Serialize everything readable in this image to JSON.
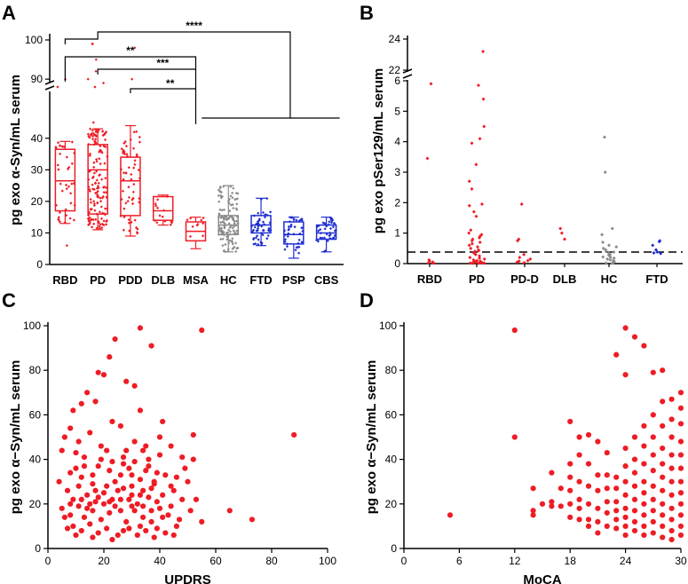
{
  "colors": {
    "red": "#ee1c25",
    "gray": "#8c8c8c",
    "blue": "#1f2fd0",
    "black": "#000000"
  },
  "chart_data": [
    {
      "panel": "A",
      "type": "box",
      "ylabel": "pg exo α-Syn/mL serum",
      "y_axis_break": [
        45,
        88
      ],
      "ylim": [
        0,
        100
      ],
      "yticks": [
        0,
        10,
        20,
        30,
        40,
        90,
        100
      ],
      "categories": [
        {
          "label": "RBD",
          "color": "red",
          "q1": 17,
          "median": 26.5,
          "q3": 36.5,
          "whisker_low": 13,
          "whisker_high": 39,
          "n": 40
        },
        {
          "label": "PD",
          "color": "red",
          "q1": 16,
          "median": 30,
          "q3": 38,
          "whisker_low": 11,
          "whisker_high": 43,
          "outliers": [
            99
          ],
          "n": 150
        },
        {
          "label": "PDD",
          "color": "red",
          "q1": 15.5,
          "median": 26.5,
          "q3": 34,
          "whisker_low": 9,
          "whisker_high": 44,
          "n": 60
        },
        {
          "label": "DLB",
          "color": "red",
          "q1": 14,
          "median": 17,
          "q3": 21.5,
          "whisker_low": 12.5,
          "whisker_high": 22,
          "n": 15
        },
        {
          "label": "MSA",
          "color": "red",
          "q1": 7.5,
          "median": 10.5,
          "q3": 13.5,
          "whisker_low": 5,
          "whisker_high": 15,
          "n": 10
        },
        {
          "label": "HC",
          "color": "gray",
          "q1": 9.5,
          "median": 12.5,
          "q3": 15.5,
          "whisker_low": 4,
          "whisker_high": 25,
          "n": 130
        },
        {
          "label": "FTD",
          "color": "blue",
          "q1": 10,
          "median": 12.5,
          "q3": 15.5,
          "whisker_low": 6,
          "whisker_high": 21,
          "n": 50
        },
        {
          "label": "PSP",
          "color": "blue",
          "q1": 6.5,
          "median": 9.5,
          "q3": 13.5,
          "whisker_low": 2,
          "whisker_high": 15,
          "n": 40
        },
        {
          "label": "CBS",
          "color": "blue",
          "q1": 8,
          "median": 10,
          "q3": 12.5,
          "whisker_low": 4,
          "whisker_high": 15,
          "n": 40
        }
      ],
      "significance": [
        {
          "label": "****",
          "from": "RBD",
          "to": "HC-FTD-PSP-CBS"
        },
        {
          "label": "**",
          "from": "RBD",
          "to": "MSA"
        },
        {
          "label": "***",
          "from": "PD",
          "to": "MSA"
        },
        {
          "label": "**",
          "from": "PDD",
          "to": "MSA"
        }
      ]
    },
    {
      "panel": "B",
      "type": "scatter",
      "ylabel": "pg exo pSer129/mL serum",
      "y_axis_break": [
        6.2,
        21.5
      ],
      "ylim": [
        0,
        24
      ],
      "yticks": [
        0,
        1,
        2,
        3,
        4,
        5,
        6,
        22,
        24
      ],
      "threshold": 0.38,
      "categories": [
        {
          "label": "RBD",
          "color": "red",
          "values": [
            5.9,
            3.45,
            0.12,
            0.08,
            0.05,
            0.03,
            0.02,
            0.02
          ]
        },
        {
          "label": "PD",
          "color": "red",
          "values": [
            23.2,
            5.85,
            5.4,
            4.5,
            4.1,
            3.95,
            3.25,
            2.7,
            2.45,
            1.95,
            1.9,
            1.7,
            1.55,
            1.1,
            1.0,
            0.95,
            0.9,
            0.85,
            0.8,
            0.75,
            0.7,
            0.65,
            0.6,
            0.55,
            0.5,
            0.45,
            0.42,
            0.4,
            0.38,
            0.35,
            0.3,
            0.25,
            0.2,
            0.18,
            0.15,
            0.12,
            0.1,
            0.08,
            0.06,
            0.05,
            0.04,
            0.03,
            0.03,
            0.02,
            0.02,
            0.02,
            0.01,
            0.01
          ]
        },
        {
          "label": "PD-D",
          "color": "red",
          "values": [
            1.95,
            0.8,
            0.75,
            0.3,
            0.2,
            0.15,
            0.1,
            0.08,
            0.05,
            0.03,
            0.02
          ]
        },
        {
          "label": "DLB",
          "color": "red",
          "values": [
            1.15,
            1.0,
            0.8
          ]
        },
        {
          "label": "HC",
          "color": "gray",
          "values": [
            4.15,
            3.0,
            1.15,
            0.95,
            0.7,
            0.6,
            0.55,
            0.5,
            0.45,
            0.4,
            0.38,
            0.35,
            0.3,
            0.28,
            0.25,
            0.22,
            0.2,
            0.18,
            0.15,
            0.12,
            0.1,
            0.08,
            0.06,
            0.05,
            0.04,
            0.03,
            0.02,
            0.01
          ]
        },
        {
          "label": "FTD",
          "color": "blue",
          "values": [
            0.75,
            0.72,
            0.6,
            0.45,
            0.38,
            0.35,
            0.33
          ]
        }
      ]
    },
    {
      "panel": "C",
      "type": "scatter",
      "xlabel": "UPDRS",
      "ylabel": "pg exo α−Syn/mL serum",
      "xlim": [
        0,
        100
      ],
      "ylim": [
        0,
        100
      ],
      "xticks": [
        0,
        20,
        40,
        60,
        80,
        100
      ],
      "yticks": [
        0,
        20,
        40,
        60,
        80,
        100
      ],
      "points": [
        [
          24,
          94
        ],
        [
          33,
          99
        ],
        [
          55,
          98
        ],
        [
          37,
          91
        ],
        [
          88,
          51
        ],
        [
          73,
          13
        ],
        [
          65,
          17
        ],
        [
          18,
          79
        ],
        [
          20,
          78
        ],
        [
          22,
          86
        ],
        [
          12,
          65
        ],
        [
          14,
          70
        ],
        [
          17,
          66
        ],
        [
          28,
          75
        ],
        [
          31,
          73
        ],
        [
          9,
          62
        ],
        [
          23,
          57
        ],
        [
          26,
          55
        ],
        [
          33,
          62
        ],
        [
          41,
          57
        ],
        [
          8,
          54
        ],
        [
          6,
          50
        ],
        [
          11,
          48
        ],
        [
          15,
          52
        ],
        [
          19,
          46
        ],
        [
          31,
          48
        ],
        [
          44,
          46
        ],
        [
          52,
          51
        ],
        [
          5,
          44
        ],
        [
          10,
          43
        ],
        [
          13,
          41
        ],
        [
          21,
          44
        ],
        [
          27,
          41
        ],
        [
          34,
          44
        ],
        [
          36,
          40
        ],
        [
          40,
          42
        ],
        [
          48,
          41
        ],
        [
          4,
          30
        ],
        [
          8,
          34
        ],
        [
          12,
          32
        ],
        [
          16,
          29
        ],
        [
          18,
          37
        ],
        [
          22,
          35
        ],
        [
          26,
          33
        ],
        [
          29,
          36
        ],
        [
          33,
          31
        ],
        [
          35,
          35
        ],
        [
          38,
          29
        ],
        [
          42,
          33
        ],
        [
          50,
          30
        ],
        [
          7,
          26
        ],
        [
          9,
          22
        ],
        [
          14,
          24
        ],
        [
          17,
          21
        ],
        [
          20,
          25
        ],
        [
          23,
          22
        ],
        [
          27,
          27
        ],
        [
          30,
          24
        ],
        [
          32,
          20
        ],
        [
          36,
          23
        ],
        [
          39,
          21
        ],
        [
          45,
          26
        ],
        [
          53,
          22
        ],
        [
          5,
          18
        ],
        [
          8,
          15
        ],
        [
          11,
          19
        ],
        [
          13,
          14
        ],
        [
          16,
          17
        ],
        [
          19,
          13
        ],
        [
          22,
          16
        ],
        [
          24,
          19
        ],
        [
          28,
          12
        ],
        [
          31,
          17
        ],
        [
          34,
          14
        ],
        [
          37,
          12
        ],
        [
          40,
          18
        ],
        [
          43,
          15
        ],
        [
          46,
          10
        ],
        [
          51,
          17
        ],
        [
          55,
          12
        ],
        [
          9,
          10
        ],
        [
          12,
          8
        ],
        [
          15,
          11
        ],
        [
          18,
          7
        ],
        [
          21,
          9
        ],
        [
          25,
          6
        ],
        [
          29,
          9
        ],
        [
          32,
          6
        ],
        [
          35,
          8
        ],
        [
          38,
          5
        ],
        [
          42,
          7
        ],
        [
          47,
          13
        ],
        [
          6,
          14
        ],
        [
          14,
          18
        ],
        [
          20,
          20
        ],
        [
          26,
          22
        ],
        [
          30,
          28
        ],
        [
          34,
          26
        ],
        [
          38,
          30
        ],
        [
          41,
          24
        ],
        [
          44,
          28
        ],
        [
          49,
          36
        ],
        [
          52,
          40
        ],
        [
          11,
          28
        ],
        [
          16,
          33
        ],
        [
          24,
          30
        ],
        [
          27,
          38
        ],
        [
          30,
          33
        ],
        [
          36,
          37
        ],
        [
          39,
          34
        ],
        [
          46,
          32
        ],
        [
          10,
          36
        ],
        [
          13,
          37
        ],
        [
          19,
          40
        ],
        [
          23,
          39
        ],
        [
          28,
          44
        ],
        [
          31,
          39
        ],
        [
          35,
          46
        ],
        [
          40,
          50
        ],
        [
          17,
          26
        ],
        [
          21,
          28
        ],
        [
          25,
          26
        ],
        [
          29,
          22
        ],
        [
          33,
          24
        ],
        [
          37,
          27
        ],
        [
          8,
          20
        ],
        [
          12,
          22
        ],
        [
          15,
          20
        ],
        [
          18,
          23
        ],
        [
          22,
          21
        ],
        [
          26,
          17
        ],
        [
          30,
          19
        ],
        [
          34,
          19
        ],
        [
          37,
          17
        ],
        [
          41,
          14
        ],
        [
          44,
          19
        ],
        [
          48,
          22
        ],
        [
          7,
          9
        ],
        [
          10,
          6
        ],
        [
          16,
          5
        ],
        [
          23,
          4
        ],
        [
          27,
          8
        ],
        [
          33,
          10
        ],
        [
          39,
          9
        ],
        [
          45,
          6
        ]
      ]
    },
    {
      "panel": "D",
      "type": "scatter",
      "xlabel": "MoCA",
      "ylabel": "pg exo α−Syn/mL serum",
      "xlim": [
        0,
        30
      ],
      "ylim": [
        0,
        100
      ],
      "xticks": [
        0,
        6,
        12,
        18,
        24,
        30
      ],
      "yticks": [
        0,
        20,
        40,
        60,
        80,
        100
      ],
      "points": [
        [
          5,
          15
        ],
        [
          12,
          98
        ],
        [
          12,
          50
        ],
        [
          14,
          17
        ],
        [
          14,
          27
        ],
        [
          14,
          15
        ],
        [
          15,
          20
        ],
        [
          16,
          34
        ],
        [
          16,
          19
        ],
        [
          16,
          21
        ],
        [
          17,
          27
        ],
        [
          17,
          19
        ],
        [
          18,
          57
        ],
        [
          18,
          38
        ],
        [
          18,
          32
        ],
        [
          18,
          26
        ],
        [
          18,
          20
        ],
        [
          18,
          14
        ],
        [
          19,
          50
        ],
        [
          19,
          42
        ],
        [
          19,
          30
        ],
        [
          19,
          22
        ],
        [
          19,
          18
        ],
        [
          19,
          13
        ],
        [
          20,
          51
        ],
        [
          20,
          38
        ],
        [
          20,
          28
        ],
        [
          20,
          20
        ],
        [
          20,
          13
        ],
        [
          20,
          10
        ],
        [
          21,
          48
        ],
        [
          21,
          33
        ],
        [
          21,
          26
        ],
        [
          21,
          18
        ],
        [
          21,
          12
        ],
        [
          21,
          7
        ],
        [
          22,
          43
        ],
        [
          22,
          33
        ],
        [
          22,
          27
        ],
        [
          22,
          21
        ],
        [
          22,
          16
        ],
        [
          22,
          10
        ],
        [
          23,
          87
        ],
        [
          23,
          32
        ],
        [
          23,
          27
        ],
        [
          23,
          21
        ],
        [
          23,
          17
        ],
        [
          23,
          13
        ],
        [
          23,
          9
        ],
        [
          24,
          99
        ],
        [
          24,
          78
        ],
        [
          24,
          45
        ],
        [
          24,
          37
        ],
        [
          24,
          30
        ],
        [
          24,
          24
        ],
        [
          24,
          18
        ],
        [
          24,
          14
        ],
        [
          24,
          10
        ],
        [
          24,
          6
        ],
        [
          25,
          95
        ],
        [
          25,
          50
        ],
        [
          25,
          40
        ],
        [
          25,
          34
        ],
        [
          25,
          28
        ],
        [
          25,
          22
        ],
        [
          25,
          17
        ],
        [
          25,
          12
        ],
        [
          25,
          8
        ],
        [
          26,
          91
        ],
        [
          26,
          55
        ],
        [
          26,
          46
        ],
        [
          26,
          38
        ],
        [
          26,
          30
        ],
        [
          26,
          25
        ],
        [
          26,
          20
        ],
        [
          26,
          15
        ],
        [
          26,
          10
        ],
        [
          26,
          6
        ],
        [
          27,
          79
        ],
        [
          27,
          60
        ],
        [
          27,
          50
        ],
        [
          27,
          42
        ],
        [
          27,
          35
        ],
        [
          27,
          28
        ],
        [
          27,
          22
        ],
        [
          27,
          17
        ],
        [
          27,
          12
        ],
        [
          27,
          7
        ],
        [
          28,
          80
        ],
        [
          28,
          66
        ],
        [
          28,
          55
        ],
        [
          28,
          45
        ],
        [
          28,
          38
        ],
        [
          28,
          32
        ],
        [
          28,
          26
        ],
        [
          28,
          20
        ],
        [
          28,
          15
        ],
        [
          28,
          10
        ],
        [
          28,
          5
        ],
        [
          29,
          67
        ],
        [
          29,
          58
        ],
        [
          29,
          50
        ],
        [
          29,
          42
        ],
        [
          29,
          36
        ],
        [
          29,
          30
        ],
        [
          29,
          24
        ],
        [
          29,
          18
        ],
        [
          29,
          13
        ],
        [
          29,
          8
        ],
        [
          29,
          4
        ],
        [
          30,
          70
        ],
        [
          30,
          63
        ],
        [
          30,
          56
        ],
        [
          30,
          48
        ],
        [
          30,
          42
        ],
        [
          30,
          36
        ],
        [
          30,
          30
        ],
        [
          30,
          25
        ],
        [
          30,
          20
        ],
        [
          30,
          15
        ],
        [
          30,
          10
        ],
        [
          30,
          6
        ]
      ]
    }
  ]
}
